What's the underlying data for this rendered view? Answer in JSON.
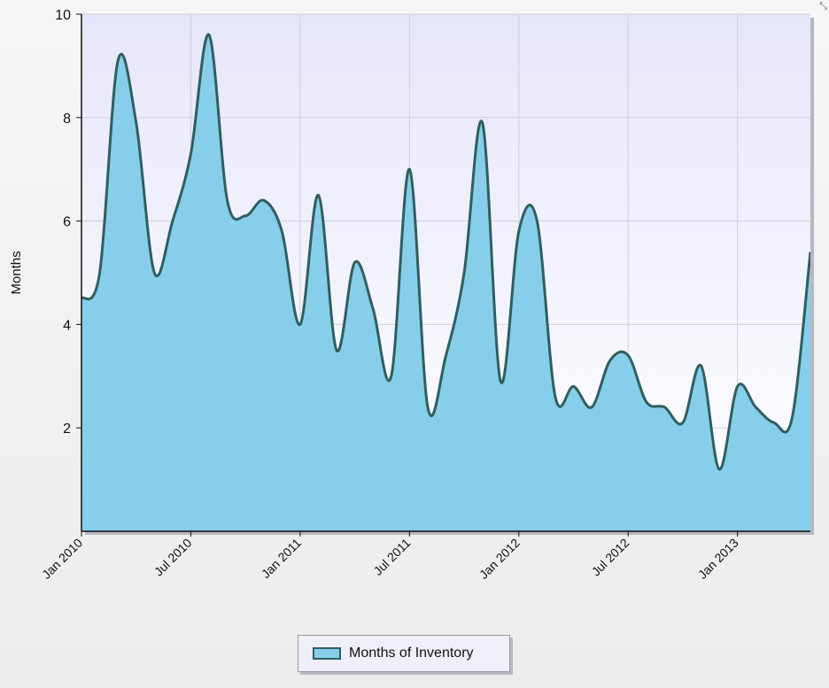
{
  "chart_data": {
    "type": "area",
    "ylabel": "Months",
    "ylim": [
      0,
      10
    ],
    "y_ticks": [
      2,
      4,
      6,
      8,
      10
    ],
    "x_ticks": [
      "Jan 2010",
      "Jul 2010",
      "Jan 2011",
      "Jul 2011",
      "Jan 2012",
      "Jul 2012",
      "Jan 2013"
    ],
    "grid": true,
    "legend_position": "bottom-center",
    "series": [
      {
        "name": "Months of Inventory",
        "fill_color": "#87ceeb",
        "line_color": "#2f5f5f",
        "x": [
          "Jan 2010",
          "Feb 2010",
          "Mar 2010",
          "Apr 2010",
          "May 2010",
          "Jun 2010",
          "Jul 2010",
          "Aug 2010",
          "Sep 2010",
          "Oct 2010",
          "Nov 2010",
          "Dec 2010",
          "Jan 2011",
          "Feb 2011",
          "Mar 2011",
          "Apr 2011",
          "May 2011",
          "Jun 2011",
          "Jul 2011",
          "Aug 2011",
          "Sep 2011",
          "Oct 2011",
          "Nov 2011",
          "Dec 2011",
          "Jan 2012",
          "Feb 2012",
          "Mar 2012",
          "Apr 2012",
          "May 2012",
          "Jun 2012",
          "Jul 2012",
          "Aug 2012",
          "Sep 2012",
          "Oct 2012",
          "Nov 2012",
          "Dec 2012",
          "Jan 2013",
          "Feb 2013",
          "Mar 2013",
          "Apr 2013",
          "May 2013"
        ],
        "values": [
          4.5,
          5.0,
          9.1,
          7.9,
          5.0,
          6.0,
          7.3,
          9.6,
          6.4,
          6.1,
          6.4,
          5.8,
          4.0,
          6.5,
          3.5,
          5.2,
          4.3,
          3.0,
          7.0,
          2.4,
          3.4,
          5.0,
          7.9,
          2.9,
          5.8,
          6.0,
          2.6,
          2.8,
          2.4,
          3.3,
          3.4,
          2.5,
          2.4,
          2.1,
          3.2,
          1.2,
          2.8,
          2.4,
          2.1,
          2.2,
          5.4
        ]
      }
    ]
  },
  "ui": {
    "legend_label": "Months of Inventory",
    "resize_glyph": "⤡"
  }
}
